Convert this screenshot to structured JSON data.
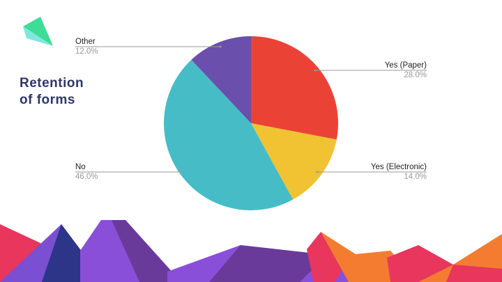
{
  "chart_data": {
    "type": "pie",
    "title": "Retention of forms",
    "categories": [
      "Yes (Paper)",
      "Yes (Electronic)",
      "No",
      "Other"
    ],
    "values": [
      28,
      14,
      46,
      12
    ],
    "value_labels": [
      "28.0%",
      "14.0%",
      "46.0%",
      "12.0%"
    ],
    "colors": [
      "#ea4335",
      "#f1c232",
      "#46bdc6",
      "#6a4fad"
    ]
  }
}
